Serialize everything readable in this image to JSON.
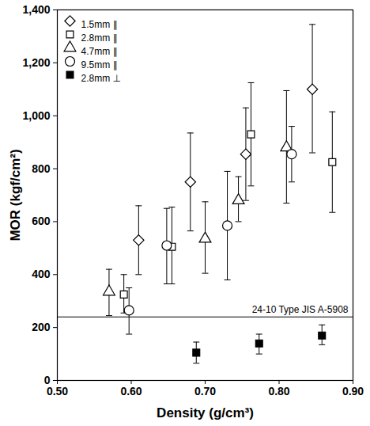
{
  "chart_data": {
    "type": "scatter",
    "x_label": "Density (g/cm³)",
    "y_label": "MOR (kgf/cm²)",
    "xlim": [
      0.5,
      0.9
    ],
    "xticks": [
      0.5,
      0.6,
      0.7,
      0.8,
      0.9
    ],
    "ylim": [
      0,
      1400
    ],
    "yticks": [
      0,
      200,
      400,
      600,
      800,
      1000,
      1200,
      1400
    ],
    "grid": false,
    "legend": "top-left",
    "annotations": [
      {
        "text": "24-10 Type JIS A-5908",
        "y": 240
      }
    ],
    "series": [
      {
        "name": "1.5mm ∥",
        "marker": "diamond",
        "color": "#000000",
        "x": [
          0.61,
          0.68,
          0.755,
          0.845
        ],
        "values": [
          530,
          750,
          855,
          1100
        ],
        "y_low": [
          400,
          565,
          680,
          860
        ],
        "y_high": [
          660,
          935,
          1030,
          1345
        ]
      },
      {
        "name": "2.8mm ∥",
        "marker": "square",
        "color": "#000000",
        "x": [
          0.59,
          0.655,
          0.762,
          0.872
        ],
        "values": [
          325,
          505,
          930,
          825
        ],
        "y_low": [
          255,
          365,
          735,
          635
        ],
        "y_high": [
          400,
          655,
          1125,
          1015
        ]
      },
      {
        "name": "4.7mm ∥",
        "marker": "triangle",
        "color": "#000000",
        "x": [
          0.57,
          0.7,
          0.745,
          0.81
        ],
        "values": [
          335,
          535,
          680,
          880
        ],
        "y_low": [
          245,
          405,
          600,
          670
        ],
        "y_high": [
          420,
          675,
          770,
          1095
        ]
      },
      {
        "name": "9.5mm ∥",
        "marker": "circle",
        "color": "#000000",
        "x": [
          0.597,
          0.648,
          0.73,
          0.817
        ],
        "values": [
          265,
          510,
          585,
          855
        ],
        "y_low": [
          175,
          365,
          380,
          750
        ],
        "y_high": [
          350,
          650,
          790,
          960
        ]
      },
      {
        "name": "2.8mm ⊥",
        "marker": "filled_square",
        "color": "#000000",
        "x": [
          0.688,
          0.773,
          0.858
        ],
        "values": [
          105,
          140,
          170
        ],
        "y_low": [
          65,
          100,
          135
        ],
        "y_high": [
          145,
          175,
          210
        ]
      }
    ]
  }
}
